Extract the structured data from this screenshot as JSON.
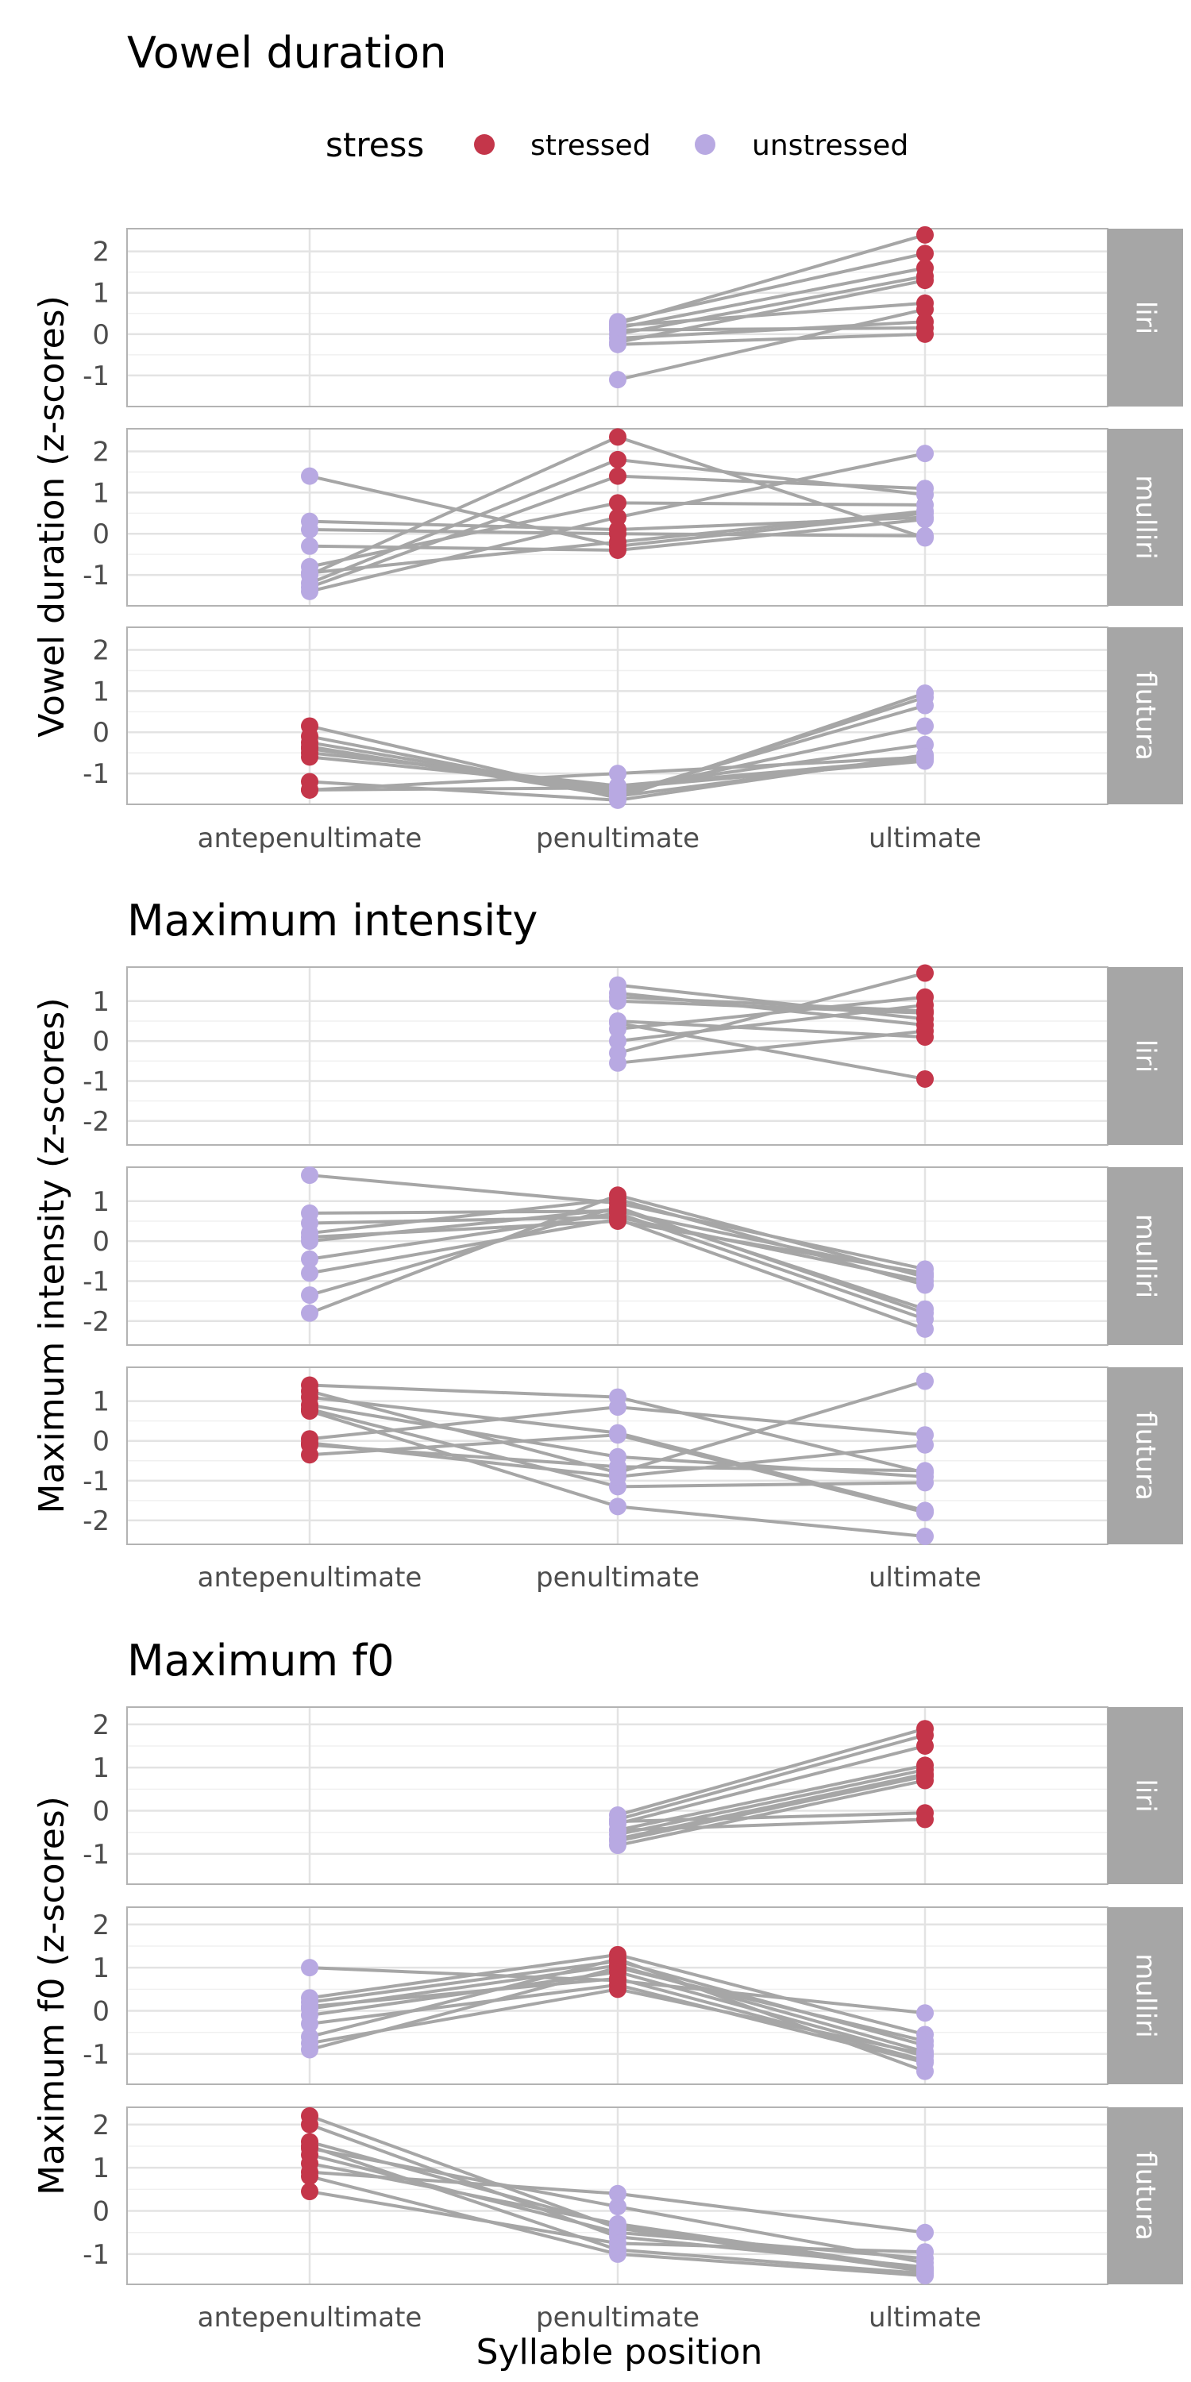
{
  "legend": {
    "title": "stress",
    "entries": [
      {
        "label": "stressed",
        "color": "#c4364a"
      },
      {
        "label": "unstressed",
        "color": "#b8a9e2"
      }
    ]
  },
  "xaxis_title": "Syllable position",
  "colors": {
    "stressed": "#c4364a",
    "unstressed": "#b8a9e2",
    "line": "#a6a6a6",
    "strip": "#a6a6a6",
    "grid": "#e3e3e3"
  },
  "chart_data": [
    {
      "type": "scatter",
      "title": "Vowel duration",
      "ylabel": "Vowel duration (z-scores)",
      "x_categories": [
        "antepenultimate",
        "penultimate",
        "ultimate"
      ],
      "ylim": [
        -1.75,
        2.55
      ],
      "yticks": [
        2,
        1,
        0,
        -1
      ],
      "ytick_labels": [
        "2",
        "1",
        "0",
        "-1"
      ],
      "facets": [
        {
          "strip": "liri",
          "stress": [
            null,
            "unstressed",
            "stressed"
          ],
          "lines": [
            [
              null,
              0.25,
              2.4
            ],
            [
              null,
              0.3,
              1.95
            ],
            [
              null,
              0.15,
              1.6
            ],
            [
              null,
              0.0,
              1.4
            ],
            [
              null,
              -0.2,
              1.3
            ],
            [
              null,
              -1.1,
              0.6
            ],
            [
              null,
              0.2,
              0.75
            ],
            [
              null,
              -0.1,
              0.3
            ],
            [
              null,
              0.1,
              0.15
            ],
            [
              null,
              -0.25,
              0.0
            ]
          ]
        },
        {
          "strip": "mulliri",
          "stress": [
            "unstressed",
            "stressed",
            "unstressed"
          ],
          "lines": [
            [
              1.4,
              -0.3,
              0.5
            ],
            [
              0.3,
              0.1,
              0.4
            ],
            [
              0.1,
              0.0,
              -0.05
            ],
            [
              -0.3,
              -0.4,
              0.35
            ],
            [
              -0.8,
              0.75,
              0.7
            ],
            [
              -1.0,
              2.35,
              -0.1
            ],
            [
              -1.2,
              1.8,
              0.95
            ],
            [
              -1.3,
              1.4,
              1.1
            ],
            [
              -1.4,
              0.4,
              1.95
            ],
            [
              -0.95,
              -0.2,
              0.55
            ]
          ]
        },
        {
          "strip": "flutura",
          "stress": [
            "stressed",
            "unstressed",
            "unstressed"
          ],
          "lines": [
            [
              0.15,
              -1.6,
              0.95
            ],
            [
              -0.1,
              -1.55,
              0.85
            ],
            [
              -0.25,
              -1.5,
              0.65
            ],
            [
              -0.4,
              -1.45,
              0.15
            ],
            [
              -0.6,
              -1.35,
              -0.3
            ],
            [
              -1.2,
              -1.65,
              -0.55
            ],
            [
              -1.4,
              -1.0,
              -0.6
            ],
            [
              -1.4,
              -1.35,
              -0.7
            ],
            [
              -0.5,
              -1.3,
              -0.65
            ],
            [
              -0.35,
              -1.55,
              -0.6
            ]
          ]
        }
      ]
    },
    {
      "type": "scatter",
      "title": "Maximum intensity",
      "ylabel": "Maximum intensity (z-scores)",
      "x_categories": [
        "antepenultimate",
        "penultimate",
        "ultimate"
      ],
      "ylim": [
        -2.6,
        1.85
      ],
      "yticks": [
        1,
        0,
        -1,
        -2
      ],
      "ytick_labels": [
        "1",
        "0",
        "-1",
        "-2"
      ],
      "facets": [
        {
          "strip": "liri",
          "stress": [
            null,
            "unstressed",
            "stressed"
          ],
          "lines": [
            [
              null,
              1.4,
              0.55
            ],
            [
              null,
              1.2,
              0.4
            ],
            [
              null,
              1.0,
              0.7
            ],
            [
              null,
              0.5,
              0.1
            ],
            [
              null,
              0.3,
              1.1
            ],
            [
              null,
              0.0,
              0.9
            ],
            [
              null,
              -0.3,
              1.7
            ],
            [
              null,
              -0.55,
              0.25
            ],
            [
              null,
              0.45,
              -0.95
            ],
            [
              null,
              1.1,
              0.75
            ]
          ]
        },
        {
          "strip": "mulliri",
          "stress": [
            "unstressed",
            "stressed",
            "unstressed"
          ],
          "lines": [
            [
              1.65,
              0.95,
              -0.7
            ],
            [
              0.7,
              0.75,
              -0.85
            ],
            [
              0.45,
              0.6,
              -1.0
            ],
            [
              0.2,
              1.05,
              -1.1
            ],
            [
              0.0,
              0.8,
              -1.7
            ],
            [
              -0.45,
              0.7,
              -1.95
            ],
            [
              -0.8,
              0.55,
              -2.2
            ],
            [
              -1.35,
              0.85,
              -1.8
            ],
            [
              -1.8,
              1.15,
              -0.9
            ],
            [
              0.1,
              0.5,
              -0.8
            ]
          ]
        },
        {
          "strip": "flutura",
          "stress": [
            "stressed",
            "unstressed",
            "unstressed"
          ],
          "lines": [
            [
              1.4,
              1.1,
              -0.8
            ],
            [
              1.25,
              -0.8,
              1.5
            ],
            [
              1.1,
              0.2,
              -1.75
            ],
            [
              0.9,
              -0.4,
              -0.9
            ],
            [
              0.8,
              -1.15,
              -1.05
            ],
            [
              0.75,
              -1.65,
              -2.4
            ],
            [
              0.05,
              0.85,
              0.15
            ],
            [
              -0.05,
              -0.9,
              -0.1
            ],
            [
              -0.35,
              0.15,
              -1.8
            ],
            [
              -0.1,
              -0.65,
              -0.75
            ]
          ]
        }
      ]
    },
    {
      "type": "scatter",
      "title": "Maximum f0",
      "ylabel": "Maximum f0 (z-scores)",
      "x_categories": [
        "antepenultimate",
        "penultimate",
        "ultimate"
      ],
      "ylim": [
        -1.7,
        2.4
      ],
      "yticks": [
        2,
        1,
        0,
        -1
      ],
      "ytick_labels": [
        "2",
        "1",
        "0",
        "-1"
      ],
      "facets": [
        {
          "strip": "liri",
          "stress": [
            null,
            "unstressed",
            "stressed"
          ],
          "lines": [
            [
              null,
              -0.1,
              1.9
            ],
            [
              null,
              -0.2,
              1.75
            ],
            [
              null,
              -0.3,
              1.5
            ],
            [
              null,
              -0.45,
              1.05
            ],
            [
              null,
              -0.55,
              0.95
            ],
            [
              null,
              -0.65,
              0.85
            ],
            [
              null,
              -0.8,
              0.7
            ],
            [
              null,
              -0.25,
              -0.05
            ],
            [
              null,
              -0.45,
              -0.2
            ],
            [
              null,
              -0.7,
              0.8
            ]
          ]
        },
        {
          "strip": "mulliri",
          "stress": [
            "unstressed",
            "stressed",
            "unstressed"
          ],
          "lines": [
            [
              1.0,
              0.7,
              -0.05
            ],
            [
              0.3,
              1.3,
              -0.55
            ],
            [
              0.2,
              1.15,
              -0.8
            ],
            [
              0.05,
              1.05,
              -0.95
            ],
            [
              -0.1,
              0.9,
              -1.05
            ],
            [
              -0.3,
              0.6,
              -1.2
            ],
            [
              -0.6,
              1.2,
              -1.4
            ],
            [
              -0.75,
              0.5,
              -1.0
            ],
            [
              -0.9,
              1.0,
              -0.7
            ],
            [
              0.1,
              0.75,
              -1.15
            ]
          ]
        },
        {
          "strip": "flutura",
          "stress": [
            "stressed",
            "unstressed",
            "unstressed"
          ],
          "lines": [
            [
              2.2,
              -0.4,
              -1.4
            ],
            [
              2.0,
              -0.6,
              -1.3
            ],
            [
              1.5,
              -0.9,
              -1.45
            ],
            [
              1.45,
              0.1,
              -1.2
            ],
            [
              1.1,
              -0.3,
              -1.35
            ],
            [
              0.9,
              0.4,
              -0.5
            ],
            [
              0.8,
              -1.0,
              -1.5
            ],
            [
              0.45,
              -0.75,
              -0.95
            ],
            [
              1.3,
              -0.5,
              -1.1
            ],
            [
              1.6,
              -0.35,
              -1.35
            ]
          ]
        }
      ]
    }
  ]
}
